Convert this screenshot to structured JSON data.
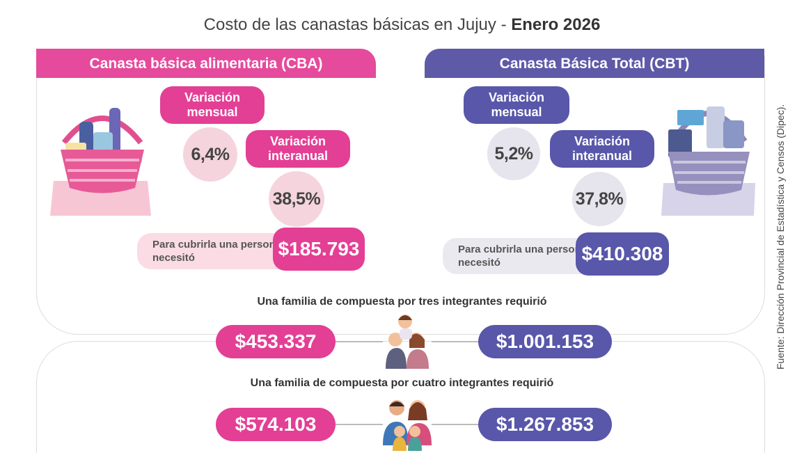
{
  "title": {
    "main": "Costo de las canastas básicas en Jujuy - ",
    "bold": "Enero 2026"
  },
  "cba": {
    "header": "Canasta básica alimentaria (CBA)",
    "monthly_label": "Variación mensual",
    "monthly_value": "6,4%",
    "yearly_label": "Variación interanual",
    "yearly_value": "38,5%",
    "need_label": "Para cubrirla una persona necesitó",
    "need_value": "$185.793"
  },
  "cbt": {
    "header": "Canasta Básica Total (CBT)",
    "monthly_label": "Variación mensual",
    "monthly_value": "5,2%",
    "yearly_label": "Variación interanual",
    "yearly_value": "37,8%",
    "need_label": "Para cubrirla una persona necesitó",
    "need_value": "$410.308"
  },
  "family3": {
    "label": "Una familia de compuesta por tres integrantes requirió",
    "cba": "$453.337",
    "cbt": "$1.001.153"
  },
  "family4": {
    "label": "Una familia de compuesta por cuatro integrantes requirió",
    "cba": "$574.103",
    "cbt": "$1.267.853"
  },
  "source": "Fuente: Dirección Provincial de Estadística y Censos (Dipec).",
  "colors": {
    "pink": "#e33f95",
    "violet": "#5857a9"
  },
  "icons": [
    "food-basket-icon",
    "total-basket-icon",
    "family-three-icon",
    "family-four-icon"
  ]
}
